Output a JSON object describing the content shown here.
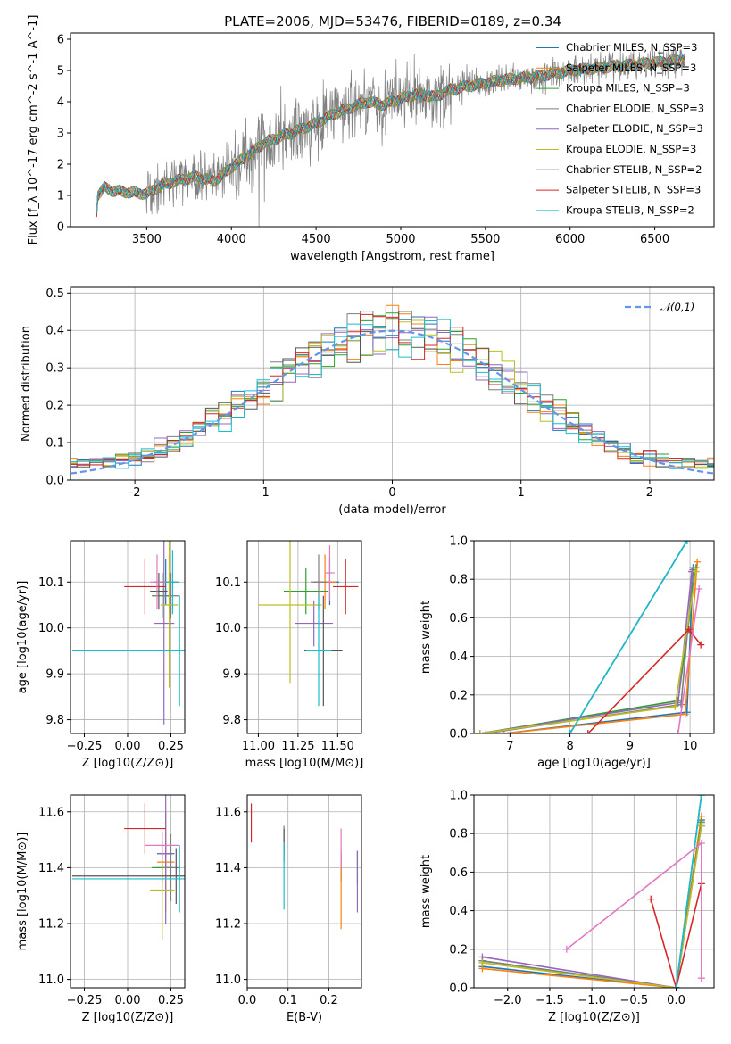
{
  "figure": {
    "title": "PLATE=2006, MJD=53476, FIBERID=0189, z=0.34"
  },
  "colors": {
    "series": [
      "#1f77b4",
      "#ff7f0e",
      "#2ca02c",
      "#7f7f7f",
      "#9467bd",
      "#bcbd22",
      "#555555",
      "#d62728",
      "#17becf"
    ],
    "labels": [
      "Chabrier MILES, N_SSP=3",
      "Salpeter MILES, N_SSP=3",
      "Kroupa MILES, N_SSP=3",
      "Chabrier ELODIE, N_SSP=3",
      "Salpeter ELODIE, N_SSP=3",
      "Kroupa ELODIE, N_SSP=3",
      "Chabrier STELIB, N_SSP=2",
      "Salpeter STELIB, N_SSP=3",
      "Kroupa STELIB, N_SSP=2"
    ]
  },
  "chart_data": [
    {
      "id": "spectrum",
      "type": "line",
      "xlabel": "wavelength [Angstrom, rest frame]",
      "ylabel": "Flux [f_λ 10^-17 erg cm^-2 s^-1 A^-1]",
      "xlim": [
        3050,
        6850
      ],
      "ylim": [
        0,
        6.2
      ],
      "xticks": [
        3500,
        4000,
        4500,
        5000,
        5500,
        6000,
        6500
      ],
      "yticks": [
        0,
        1,
        2,
        3,
        4,
        5,
        6
      ],
      "data_color": "#808080",
      "legend": [
        "Chabrier MILES, N_SSP=3",
        "Salpeter MILES, N_SSP=3",
        "Kroupa MILES, N_SSP=3",
        "Chabrier ELODIE, N_SSP=3",
        "Salpeter ELODIE, N_SSP=3",
        "Kroupa ELODIE, N_SSP=3",
        "Chabrier STELIB, N_SSP=2",
        "Salpeter STELIB, N_SSP=3",
        "Kroupa STELIB, N_SSP=2"
      ],
      "legend_loc": "lower-right",
      "continuum": [
        [
          3200,
          0.0
        ],
        [
          3210,
          1.0
        ],
        [
          3250,
          1.25
        ],
        [
          3300,
          1.15
        ],
        [
          3400,
          1.1
        ],
        [
          3500,
          1.05
        ],
        [
          3600,
          1.35
        ],
        [
          3700,
          1.5
        ],
        [
          3800,
          1.6
        ],
        [
          3900,
          1.45
        ],
        [
          4000,
          1.9
        ],
        [
          4100,
          2.3
        ],
        [
          4200,
          2.7
        ],
        [
          4300,
          2.9
        ],
        [
          4400,
          3.1
        ],
        [
          4500,
          3.3
        ],
        [
          4600,
          3.6
        ],
        [
          4700,
          3.8
        ],
        [
          4800,
          4.0
        ],
        [
          4900,
          3.9
        ],
        [
          5000,
          4.1
        ],
        [
          5100,
          4.25
        ],
        [
          5200,
          4.15
        ],
        [
          5300,
          4.4
        ],
        [
          5400,
          4.5
        ],
        [
          5500,
          4.6
        ],
        [
          5600,
          4.7
        ],
        [
          5700,
          4.75
        ],
        [
          5800,
          4.8
        ],
        [
          5900,
          4.9
        ],
        [
          6000,
          5.0
        ],
        [
          6100,
          5.05
        ],
        [
          6200,
          5.1
        ],
        [
          6300,
          5.15
        ],
        [
          6400,
          5.2
        ],
        [
          6500,
          5.25
        ],
        [
          6600,
          5.3
        ],
        [
          6680,
          5.35
        ]
      ]
    },
    {
      "id": "residuals",
      "type": "histogram",
      "xlabel": "(data-model)/error",
      "ylabel": "Normed distribution",
      "xlim": [
        -2.5,
        2.5
      ],
      "ylim": [
        0,
        0.515
      ],
      "xticks": [
        -2,
        -1,
        0,
        1,
        2
      ],
      "yticks": [
        0.0,
        0.1,
        0.2,
        0.3,
        0.4,
        0.5
      ],
      "legend": "𝒩(0,1)",
      "legend_loc": "upper-right",
      "bin_width": 0.1,
      "gaussian_color": "#6495ed"
    },
    {
      "id": "age-vs-Z",
      "type": "scatter",
      "xlabel": "Z [log10(Z/Z⊙)]",
      "ylabel": "age  [log10(age/yr)]",
      "xlim": [
        -0.33,
        0.33
      ],
      "ylim": [
        9.77,
        10.19
      ],
      "xticks": [
        -0.25,
        0.0,
        0.25
      ],
      "yticks": [
        9.8,
        9.9,
        10.0,
        10.1
      ],
      "points": [
        {
          "x": 0.22,
          "y": 10.1,
          "xerr": 0.07,
          "yerr": 0.05,
          "c": 0
        },
        {
          "x": 0.24,
          "y": 10.1,
          "xerr": 0.05,
          "yerr": 0.06,
          "c": 1
        },
        {
          "x": 0.2,
          "y": 10.07,
          "xerr": 0.06,
          "yerr": 0.05,
          "c": 2
        },
        {
          "x": 0.25,
          "y": 10.07,
          "xerr": 0.05,
          "yerr": 0.05,
          "c": 3
        },
        {
          "x": 0.21,
          "y": 10.01,
          "xerr": 0.06,
          "yerr": 0.22,
          "c": 4
        },
        {
          "x": 0.24,
          "y": 10.05,
          "xerr": 0.05,
          "yerr": 0.18,
          "c": 5
        },
        {
          "x": 0.18,
          "y": 10.08,
          "xerr": 0.05,
          "yerr": 0.04,
          "c": 6
        },
        {
          "x": 0.1,
          "y": 10.09,
          "xerr": 0.12,
          "yerr": 0.06,
          "c": 7
        },
        {
          "x": 0.3,
          "y": 9.95,
          "xerr": 0.62,
          "yerr": 0.12,
          "c": 8
        },
        {
          "x": 0.26,
          "y": 10.1,
          "xerr": 0.04,
          "yerr": 0.07,
          "c": 8
        },
        {
          "x": 0.17,
          "y": 10.1,
          "xerr": 0.04,
          "yerr": 0.06,
          "c": 9
        }
      ]
    },
    {
      "id": "age-vs-mass",
      "type": "scatter",
      "xlabel": "mass [log10(M/M⊙)]",
      "ylabel": "",
      "xlim": [
        10.93,
        11.65
      ],
      "ylim": [
        9.77,
        10.19
      ],
      "xticks": [
        11.0,
        11.25,
        11.5
      ],
      "yticks": [
        9.8,
        9.9,
        10.0,
        10.1
      ],
      "points": [
        {
          "x": 11.45,
          "y": 10.1,
          "xerr": 0.06,
          "yerr": 0.05,
          "c": 0
        },
        {
          "x": 11.42,
          "y": 10.1,
          "xerr": 0.07,
          "yerr": 0.06,
          "c": 1
        },
        {
          "x": 11.3,
          "y": 10.08,
          "xerr": 0.14,
          "yerr": 0.05,
          "c": 2
        },
        {
          "x": 11.38,
          "y": 10.1,
          "xerr": 0.05,
          "yerr": 0.06,
          "c": 3
        },
        {
          "x": 11.35,
          "y": 10.01,
          "xerr": 0.12,
          "yerr": 0.05,
          "c": 4
        },
        {
          "x": 11.2,
          "y": 10.05,
          "xerr": 0.2,
          "yerr": 0.17,
          "c": 5
        },
        {
          "x": 11.41,
          "y": 9.95,
          "xerr": 0.12,
          "yerr": 0.12,
          "c": 6
        },
        {
          "x": 11.55,
          "y": 10.09,
          "xerr": 0.08,
          "yerr": 0.06,
          "c": 7
        },
        {
          "x": 11.38,
          "y": 9.95,
          "xerr": 0.08,
          "yerr": 0.12,
          "c": 8
        },
        {
          "x": 11.45,
          "y": 10.12,
          "xerr": 0.03,
          "yerr": 0.06,
          "c": 9
        }
      ]
    },
    {
      "id": "weight-vs-age",
      "type": "line",
      "xlabel": "age  [log10(age/yr)]",
      "ylabel": "mass weight",
      "xlim": [
        6.4,
        10.4
      ],
      "ylim": [
        0,
        1.0
      ],
      "xticks": [
        7,
        8,
        9,
        10
      ],
      "yticks": [
        0.0,
        0.2,
        0.4,
        0.6,
        0.8,
        1.0
      ],
      "series": [
        {
          "c": 0,
          "points": [
            [
              6.9,
              0.0
            ],
            [
              9.95,
              0.11
            ],
            [
              10.05,
              0.86
            ]
          ]
        },
        {
          "c": 1,
          "points": [
            [
              6.9,
              0.0
            ],
            [
              9.92,
              0.1
            ],
            [
              10.12,
              0.89
            ]
          ]
        },
        {
          "c": 2,
          "points": [
            [
              6.5,
              0.0
            ],
            [
              9.8,
              0.17
            ],
            [
              10.1,
              0.86
            ]
          ]
        },
        {
          "c": 3,
          "points": [
            [
              6.6,
              0.0
            ],
            [
              9.85,
              0.15
            ],
            [
              10.05,
              0.85
            ]
          ]
        },
        {
          "c": 4,
          "points": [
            [
              6.5,
              0.0
            ],
            [
              9.8,
              0.16
            ],
            [
              10.03,
              0.84
            ]
          ]
        },
        {
          "c": 5,
          "points": [
            [
              6.5,
              0.0
            ],
            [
              9.75,
              0.14
            ],
            [
              10.1,
              0.84
            ]
          ]
        },
        {
          "c": 6,
          "points": [
            [
              8.0,
              0.0
            ],
            [
              9.95,
              1.0
            ]
          ]
        },
        {
          "c": 7,
          "points": [
            [
              8.3,
              0.0
            ],
            [
              9.98,
              0.54
            ],
            [
              10.18,
              0.46
            ]
          ]
        },
        {
          "c": 8,
          "points": [
            [
              8.0,
              0.0
            ],
            [
              9.95,
              1.0
            ]
          ]
        },
        {
          "c": 9,
          "points": [
            [
              9.8,
              0.0
            ],
            [
              10.15,
              0.75
            ]
          ]
        }
      ]
    },
    {
      "id": "mass-vs-Z",
      "type": "scatter",
      "xlabel": "Z [log10(Z/Z⊙)]",
      "ylabel": "mass [log10(M/M⊙)]",
      "xlim": [
        -0.33,
        0.33
      ],
      "ylim": [
        10.97,
        11.66
      ],
      "xticks": [
        -0.25,
        0.0,
        0.25
      ],
      "yticks": [
        11.0,
        11.2,
        11.4,
        11.6
      ],
      "points": [
        {
          "x": 0.22,
          "y": 11.45,
          "xerr": 0.05,
          "yerr": 0.05,
          "c": 0
        },
        {
          "x": 0.22,
          "y": 11.42,
          "xerr": 0.05,
          "yerr": 0.18,
          "c": 1
        },
        {
          "x": 0.2,
          "y": 11.4,
          "xerr": 0.06,
          "yerr": 0.05,
          "c": 2
        },
        {
          "x": 0.25,
          "y": 11.4,
          "xerr": 0.05,
          "yerr": 0.12,
          "c": 3
        },
        {
          "x": 0.22,
          "y": 11.45,
          "xerr": 0.04,
          "yerr": 0.25,
          "c": 4
        },
        {
          "x": 0.2,
          "y": 11.32,
          "xerr": 0.07,
          "yerr": 0.18,
          "c": 5
        },
        {
          "x": 0.28,
          "y": 11.37,
          "xerr": 0.6,
          "yerr": 0.1,
          "c": 6
        },
        {
          "x": 0.1,
          "y": 11.54,
          "xerr": 0.12,
          "yerr": 0.09,
          "c": 7
        },
        {
          "x": 0.3,
          "y": 11.36,
          "xerr": 0.62,
          "yerr": 0.12,
          "c": 8
        },
        {
          "x": 0.2,
          "y": 11.48,
          "xerr": 0.1,
          "yerr": 0.05,
          "c": 9
        }
      ]
    },
    {
      "id": "mass-vs-EBV",
      "type": "scatter",
      "xlabel": "E(B-V)",
      "ylabel": "",
      "xlim": [
        0.0,
        0.28
      ],
      "ylim": [
        10.97,
        11.66
      ],
      "xticks": [
        0.0,
        0.1,
        0.2
      ],
      "yticks": [
        11.0,
        11.2,
        11.4,
        11.6
      ],
      "points": [
        {
          "x": 0.23,
          "y": 11.4,
          "yerr": 0.05,
          "c": 0
        },
        {
          "x": 0.23,
          "y": 11.32,
          "yerr": 0.14,
          "c": 1
        },
        {
          "x": 0.27,
          "y": 11.4,
          "yerr": 0.06,
          "c": 2
        },
        {
          "x": 0.09,
          "y": 11.5,
          "yerr": 0.05,
          "c": 3
        },
        {
          "x": 0.27,
          "y": 11.35,
          "yerr": 0.11,
          "c": 4
        },
        {
          "x": 0.28,
          "y": 11.2,
          "yerr": 0.22,
          "c": 5
        },
        {
          "x": 0.09,
          "y": 11.48,
          "yerr": 0.06,
          "c": 6
        },
        {
          "x": 0.01,
          "y": 11.56,
          "yerr": 0.07,
          "c": 7
        },
        {
          "x": 0.09,
          "y": 11.37,
          "yerr": 0.12,
          "c": 8
        },
        {
          "x": 0.23,
          "y": 11.47,
          "yerr": 0.07,
          "c": 9
        }
      ]
    },
    {
      "id": "weight-vs-Z",
      "type": "line",
      "xlabel": "Z [log10(Z/Z⊙)]",
      "ylabel": "mass weight",
      "xlim": [
        -2.4,
        0.45
      ],
      "ylim": [
        0,
        1.0
      ],
      "xticks": [
        -2.0,
        -1.5,
        -1.0,
        -0.5,
        0.0
      ],
      "yticks": [
        0.0,
        0.2,
        0.4,
        0.6,
        0.8,
        1.0
      ],
      "series": [
        {
          "c": 0,
          "points": [
            [
              -2.3,
              0.11
            ],
            [
              0.0,
              0.0
            ],
            [
              0.3,
              0.87
            ]
          ]
        },
        {
          "c": 1,
          "points": [
            [
              -2.3,
              0.1
            ],
            [
              0.0,
              0.0
            ],
            [
              0.3,
              0.89
            ]
          ]
        },
        {
          "c": 2,
          "points": [
            [
              -2.3,
              0.14
            ],
            [
              0.0,
              0.0
            ],
            [
              0.3,
              0.86
            ]
          ]
        },
        {
          "c": 3,
          "points": [
            [
              -2.3,
              0.14
            ],
            [
              0.0,
              0.0
            ],
            [
              0.3,
              0.85
            ]
          ]
        },
        {
          "c": 4,
          "points": [
            [
              -2.3,
              0.16
            ],
            [
              0.0,
              0.0
            ],
            [
              0.3,
              0.84
            ]
          ]
        },
        {
          "c": 5,
          "points": [
            [
              -2.3,
              0.13
            ],
            [
              0.0,
              0.0
            ],
            [
              0.3,
              0.84
            ]
          ]
        },
        {
          "c": 6,
          "points": [
            [
              0.0,
              0.0
            ],
            [
              0.3,
              1.0
            ]
          ]
        },
        {
          "c": 7,
          "points": [
            [
              -0.3,
              0.46
            ],
            [
              0.0,
              0.0
            ],
            [
              0.3,
              0.54
            ]
          ]
        },
        {
          "c": 8,
          "points": [
            [
              0.0,
              0.0
            ],
            [
              0.3,
              1.0
            ]
          ]
        },
        {
          "c": 9,
          "points": [
            [
              -1.3,
              0.2
            ],
            [
              0.3,
              0.75
            ],
            [
              0.3,
              0.05
            ]
          ]
        }
      ]
    }
  ]
}
